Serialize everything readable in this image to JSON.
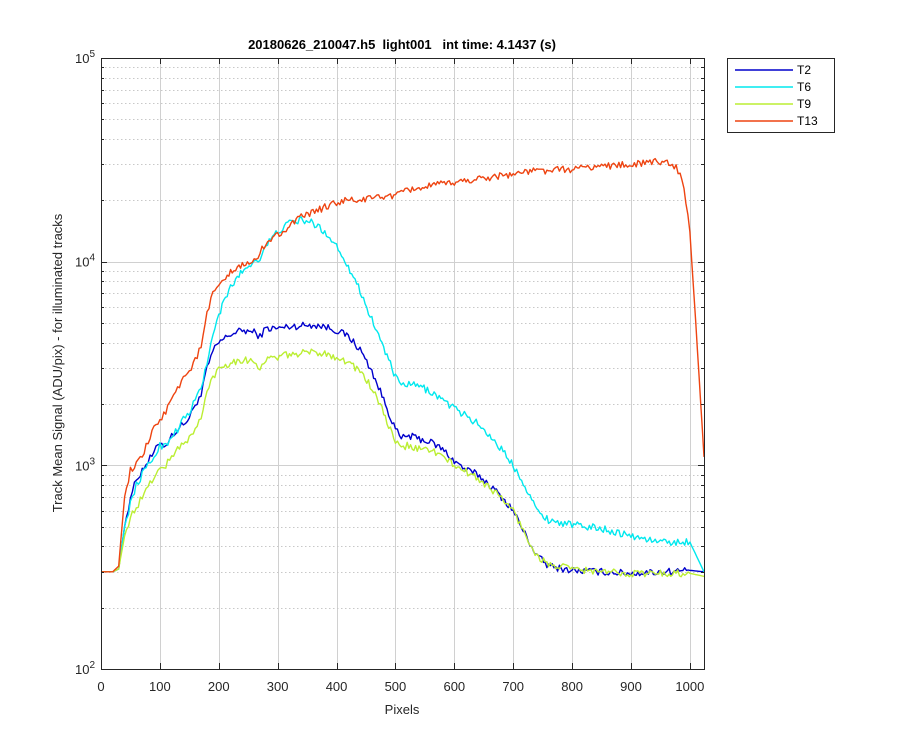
{
  "chart_data": {
    "type": "line",
    "title": "20180626_210047.h5  light001   int time: 4.1437 (s)",
    "xlabel": "Pixels",
    "ylabel": "Track Mean Signal (ADU/pix) - for illuminated tracks",
    "xlim": [
      0,
      1024
    ],
    "ylim": [
      100,
      100000
    ],
    "y_scale": "log",
    "grid": true,
    "legend_position": "outside-top-right",
    "x_ticks": [
      0,
      100,
      200,
      300,
      400,
      500,
      600,
      700,
      800,
      900,
      1000
    ],
    "x_tick_labels": [
      "0",
      "100",
      "200",
      "300",
      "400",
      "500",
      "600",
      "700",
      "800",
      "900",
      "1000"
    ],
    "y_ticks": [
      100,
      1000,
      10000,
      100000
    ],
    "y_tick_labels": [
      {
        "base": "10",
        "exp": "2"
      },
      {
        "base": "10",
        "exp": "3"
      },
      {
        "base": "10",
        "exp": "4"
      },
      {
        "base": "10",
        "exp": "5"
      }
    ],
    "series": [
      {
        "name": "T2",
        "color": "#0000cc",
        "x": [
          0,
          20,
          30,
          40,
          50,
          60,
          70,
          80,
          90,
          100,
          110,
          120,
          130,
          140,
          150,
          160,
          170,
          180,
          190,
          200,
          220,
          240,
          260,
          270,
          280,
          300,
          320,
          340,
          360,
          380,
          400,
          420,
          440,
          460,
          480,
          500,
          510,
          520,
          540,
          560,
          580,
          600,
          620,
          640,
          660,
          680,
          700,
          720,
          740,
          760,
          800,
          850,
          900,
          950,
          1000,
          1024
        ],
        "y": [
          300,
          300,
          310,
          500,
          700,
          850,
          950,
          1050,
          1150,
          1300,
          1250,
          1400,
          1500,
          1600,
          1700,
          2000,
          2200,
          3000,
          3600,
          4000,
          4400,
          4600,
          4500,
          4300,
          4700,
          4700,
          4800,
          4850,
          4900,
          4800,
          4600,
          4300,
          3700,
          2900,
          2100,
          1500,
          1350,
          1400,
          1350,
          1300,
          1200,
          1050,
          950,
          900,
          800,
          700,
          600,
          460,
          360,
          320,
          305,
          300,
          295,
          300,
          305,
          300
        ]
      },
      {
        "name": "T6",
        "color": "#00e8ee",
        "x": [
          0,
          20,
          30,
          40,
          50,
          60,
          70,
          80,
          90,
          100,
          110,
          120,
          130,
          140,
          150,
          160,
          170,
          180,
          190,
          200,
          220,
          240,
          260,
          270,
          280,
          300,
          320,
          340,
          360,
          380,
          400,
          420,
          440,
          460,
          480,
          500,
          510,
          520,
          540,
          560,
          580,
          600,
          620,
          640,
          660,
          680,
          700,
          720,
          740,
          760,
          800,
          850,
          900,
          950,
          1000,
          1024
        ],
        "y": [
          300,
          300,
          310,
          500,
          650,
          800,
          900,
          1000,
          1100,
          1250,
          1250,
          1400,
          1500,
          1700,
          1800,
          2100,
          2400,
          3200,
          4300,
          5500,
          7500,
          9000,
          10000,
          10500,
          12000,
          14000,
          15500,
          16000,
          15500,
          14000,
          12000,
          9500,
          7200,
          5200,
          3800,
          2700,
          2450,
          2500,
          2450,
          2300,
          2100,
          1900,
          1750,
          1600,
          1400,
          1200,
          1000,
          800,
          600,
          540,
          510,
          490,
          450,
          420,
          420,
          300
        ]
      },
      {
        "name": "T9",
        "color": "#bbee33",
        "x": [
          0,
          20,
          30,
          40,
          50,
          60,
          70,
          80,
          90,
          100,
          110,
          120,
          130,
          140,
          150,
          160,
          170,
          180,
          190,
          200,
          220,
          240,
          260,
          270,
          280,
          300,
          320,
          340,
          360,
          380,
          400,
          420,
          440,
          460,
          480,
          500,
          510,
          520,
          540,
          560,
          580,
          600,
          620,
          640,
          660,
          680,
          700,
          720,
          740,
          760,
          800,
          850,
          900,
          950,
          1000,
          1024
        ],
        "y": [
          300,
          300,
          310,
          450,
          560,
          620,
          700,
          780,
          880,
          960,
          1000,
          1100,
          1200,
          1300,
          1350,
          1500,
          1700,
          2300,
          2700,
          3000,
          3200,
          3300,
          3250,
          3000,
          3300,
          3400,
          3500,
          3550,
          3600,
          3550,
          3400,
          3200,
          2900,
          2400,
          1800,
          1300,
          1200,
          1250,
          1200,
          1200,
          1100,
          1000,
          930,
          860,
          780,
          690,
          600,
          460,
          360,
          325,
          310,
          300,
          295,
          295,
          295,
          285
        ]
      },
      {
        "name": "T13",
        "color": "#ee4411",
        "x": [
          0,
          20,
          30,
          40,
          50,
          60,
          70,
          80,
          90,
          100,
          110,
          120,
          130,
          140,
          150,
          160,
          170,
          180,
          190,
          200,
          220,
          240,
          260,
          270,
          280,
          300,
          320,
          340,
          360,
          380,
          400,
          420,
          440,
          460,
          480,
          500,
          510,
          520,
          540,
          560,
          580,
          600,
          620,
          640,
          660,
          680,
          700,
          720,
          740,
          760,
          800,
          850,
          900,
          950,
          970,
          980,
          990,
          1000,
          1010,
          1024
        ],
        "y": [
          300,
          300,
          320,
          700,
          950,
          1000,
          1100,
          1300,
          1500,
          1700,
          1800,
          2200,
          2400,
          2700,
          2900,
          3300,
          3800,
          5500,
          7000,
          7500,
          8800,
          9600,
          10000,
          11000,
          12500,
          13500,
          15000,
          16500,
          17500,
          18500,
          19500,
          20000,
          20000,
          20500,
          21000,
          21000,
          21500,
          22500,
          23000,
          23500,
          24000,
          24500,
          25000,
          25500,
          26000,
          26500,
          27000,
          27500,
          28000,
          28000,
          28500,
          29500,
          30000,
          31000,
          30500,
          28000,
          23000,
          14000,
          5000,
          1100
        ]
      }
    ]
  }
}
